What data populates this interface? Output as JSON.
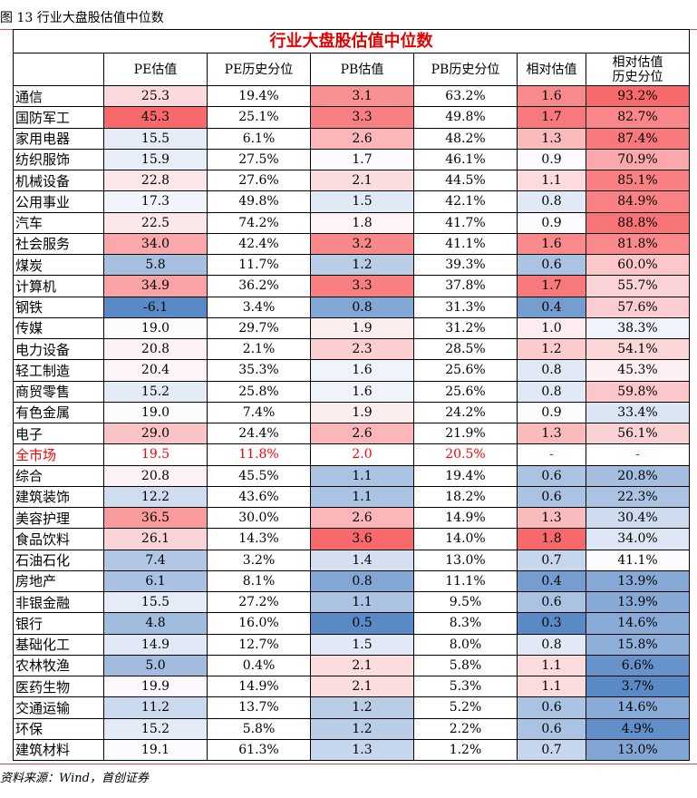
{
  "caption": "图 13 行业大盘股估值中位数",
  "table_title": "行业大盘股估值中位数",
  "source": "资料来源：Wind，首创证券",
  "columns": [
    "",
    "PE估值",
    "PE历史分位",
    "PB估值",
    "PB历史分位",
    "相对估值",
    "相对估值\n历史分位"
  ],
  "rows": [
    {
      "name": "通信",
      "pe": "25.3",
      "pe_pct": "19.4%",
      "pb": "3.1",
      "pb_pct": "63.2%",
      "rel": "1.6",
      "rel_pct": "93.2%"
    },
    {
      "name": "国防军工",
      "pe": "45.3",
      "pe_pct": "25.1%",
      "pb": "3.3",
      "pb_pct": "49.8%",
      "rel": "1.7",
      "rel_pct": "82.7%"
    },
    {
      "name": "家用电器",
      "pe": "15.5",
      "pe_pct": "6.1%",
      "pb": "2.6",
      "pb_pct": "48.2%",
      "rel": "1.3",
      "rel_pct": "87.4%"
    },
    {
      "name": "纺织服饰",
      "pe": "15.9",
      "pe_pct": "27.5%",
      "pb": "1.7",
      "pb_pct": "46.1%",
      "rel": "0.9",
      "rel_pct": "70.9%"
    },
    {
      "name": "机械设备",
      "pe": "22.8",
      "pe_pct": "27.6%",
      "pb": "2.1",
      "pb_pct": "44.5%",
      "rel": "1.1",
      "rel_pct": "85.1%"
    },
    {
      "name": "公用事业",
      "pe": "17.3",
      "pe_pct": "49.8%",
      "pb": "1.5",
      "pb_pct": "42.1%",
      "rel": "0.8",
      "rel_pct": "84.9%"
    },
    {
      "name": "汽车",
      "pe": "22.5",
      "pe_pct": "74.2%",
      "pb": "1.8",
      "pb_pct": "41.7%",
      "rel": "0.9",
      "rel_pct": "88.8%"
    },
    {
      "name": "社会服务",
      "pe": "34.0",
      "pe_pct": "42.4%",
      "pb": "3.2",
      "pb_pct": "41.1%",
      "rel": "1.6",
      "rel_pct": "81.8%"
    },
    {
      "name": "煤炭",
      "pe": "5.8",
      "pe_pct": "11.7%",
      "pb": "1.2",
      "pb_pct": "39.3%",
      "rel": "0.6",
      "rel_pct": "60.0%"
    },
    {
      "name": "计算机",
      "pe": "34.9",
      "pe_pct": "36.2%",
      "pb": "3.3",
      "pb_pct": "37.8%",
      "rel": "1.7",
      "rel_pct": "55.7%"
    },
    {
      "name": "钢铁",
      "pe": "-6.1",
      "pe_pct": "3.4%",
      "pb": "0.8",
      "pb_pct": "31.3%",
      "rel": "0.4",
      "rel_pct": "57.6%"
    },
    {
      "name": "传媒",
      "pe": "19.0",
      "pe_pct": "29.7%",
      "pb": "1.9",
      "pb_pct": "31.2%",
      "rel": "1.0",
      "rel_pct": "38.3%"
    },
    {
      "name": "电力设备",
      "pe": "20.8",
      "pe_pct": "2.1%",
      "pb": "2.3",
      "pb_pct": "28.5%",
      "rel": "1.2",
      "rel_pct": "54.1%"
    },
    {
      "name": "轻工制造",
      "pe": "20.4",
      "pe_pct": "35.3%",
      "pb": "1.6",
      "pb_pct": "25.6%",
      "rel": "0.8",
      "rel_pct": "45.3%"
    },
    {
      "name": "商贸零售",
      "pe": "15.2",
      "pe_pct": "25.8%",
      "pb": "1.6",
      "pb_pct": "25.6%",
      "rel": "0.8",
      "rel_pct": "59.8%"
    },
    {
      "name": "有色金属",
      "pe": "19.0",
      "pe_pct": "7.4%",
      "pb": "1.9",
      "pb_pct": "24.2%",
      "rel": "0.9",
      "rel_pct": "33.4%"
    },
    {
      "name": "电子",
      "pe": "29.0",
      "pe_pct": "24.4%",
      "pb": "2.6",
      "pb_pct": "21.9%",
      "rel": "1.3",
      "rel_pct": "56.1%"
    },
    {
      "name": "全市场",
      "pe": "19.5",
      "pe_pct": "11.8%",
      "pb": "2.0",
      "pb_pct": "20.5%",
      "rel": "-",
      "rel_pct": "-",
      "market": true
    },
    {
      "name": "综合",
      "pe": "20.8",
      "pe_pct": "45.5%",
      "pb": "1.1",
      "pb_pct": "19.4%",
      "rel": "0.6",
      "rel_pct": "20.8%"
    },
    {
      "name": "建筑装饰",
      "pe": "12.2",
      "pe_pct": "43.6%",
      "pb": "1.1",
      "pb_pct": "18.2%",
      "rel": "0.6",
      "rel_pct": "22.3%"
    },
    {
      "name": "美容护理",
      "pe": "36.5",
      "pe_pct": "30.0%",
      "pb": "2.6",
      "pb_pct": "14.9%",
      "rel": "1.3",
      "rel_pct": "30.4%"
    },
    {
      "name": "食品饮料",
      "pe": "26.1",
      "pe_pct": "14.3%",
      "pb": "3.6",
      "pb_pct": "14.0%",
      "rel": "1.8",
      "rel_pct": "34.0%"
    },
    {
      "name": "石油石化",
      "pe": "7.4",
      "pe_pct": "3.2%",
      "pb": "1.4",
      "pb_pct": "13.0%",
      "rel": "0.7",
      "rel_pct": "41.1%"
    },
    {
      "name": "房地产",
      "pe": "6.1",
      "pe_pct": "8.1%",
      "pb": "0.8",
      "pb_pct": "11.1%",
      "rel": "0.4",
      "rel_pct": "13.9%"
    },
    {
      "name": "非银金融",
      "pe": "15.5",
      "pe_pct": "27.2%",
      "pb": "1.1",
      "pb_pct": "9.5%",
      "rel": "0.6",
      "rel_pct": "13.9%"
    },
    {
      "name": "银行",
      "pe": "4.8",
      "pe_pct": "16.0%",
      "pb": "0.5",
      "pb_pct": "8.3%",
      "rel": "0.3",
      "rel_pct": "14.6%"
    },
    {
      "name": "基础化工",
      "pe": "14.9",
      "pe_pct": "12.7%",
      "pb": "1.5",
      "pb_pct": "8.0%",
      "rel": "0.8",
      "rel_pct": "15.8%"
    },
    {
      "name": "农林牧渔",
      "pe": "5.0",
      "pe_pct": "0.4%",
      "pb": "2.1",
      "pb_pct": "5.8%",
      "rel": "1.1",
      "rel_pct": "6.6%"
    },
    {
      "name": "医药生物",
      "pe": "19.9",
      "pe_pct": "14.9%",
      "pb": "2.1",
      "pb_pct": "5.3%",
      "rel": "1.1",
      "rel_pct": "3.7%"
    },
    {
      "name": "交通运输",
      "pe": "11.2",
      "pe_pct": "13.7%",
      "pb": "1.2",
      "pb_pct": "5.2%",
      "rel": "0.6",
      "rel_pct": "14.6%"
    },
    {
      "name": "环保",
      "pe": "15.2",
      "pe_pct": "5.8%",
      "pb": "1.2",
      "pb_pct": "2.2%",
      "rel": "0.6",
      "rel_pct": "4.9%"
    },
    {
      "name": "建筑材料",
      "pe": "19.1",
      "pe_pct": "61.3%",
      "pb": "1.3",
      "pb_pct": "1.2%",
      "rel": "0.7",
      "rel_pct": "13.0%"
    }
  ],
  "colors": {
    "high": "#f8696b",
    "mid": "#fcfcff",
    "low": "#5a8ac6",
    "market_text": "#ff0000",
    "title_text": "#e50000"
  }
}
